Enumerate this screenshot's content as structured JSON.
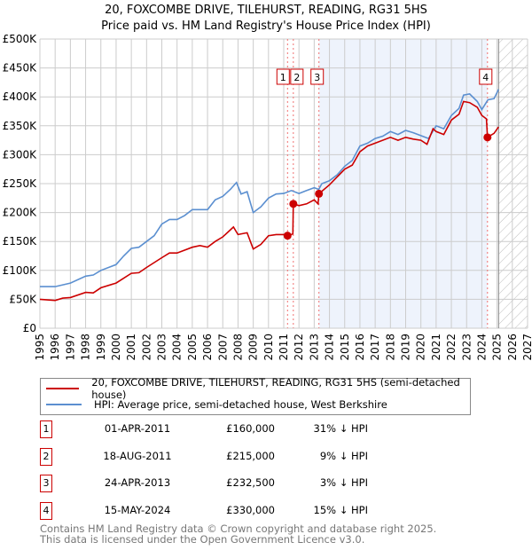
{
  "title_line1": "20, FOXCOMBE DRIVE, TILEHURST, READING, RG31 5HS",
  "title_line2": "Price paid vs. HM Land Registry's House Price Index (HPI)",
  "legend": {
    "property": "20, FOXCOMBE DRIVE, TILEHURST, READING, RG31 5HS (semi-detached house)",
    "hpi": "HPI: Average price, semi-detached house, West Berkshire"
  },
  "sales": [
    {
      "n": "1",
      "date": "01-APR-2011",
      "price": "£160,000",
      "pct": "31% ↓ HPI"
    },
    {
      "n": "2",
      "date": "18-AUG-2011",
      "price": "£215,000",
      "pct": "9% ↓ HPI"
    },
    {
      "n": "3",
      "date": "24-APR-2013",
      "price": "£232,500",
      "pct": "3% ↓ HPI"
    },
    {
      "n": "4",
      "date": "15-MAY-2024",
      "price": "£330,000",
      "pct": "15% ↓ HPI"
    }
  ],
  "footer1": "Contains HM Land Registry data © Crown copyright and database right 2025.",
  "footer2": "This data is licensed under the Open Government Licence v3.0.",
  "colors": {
    "property": "#cc0000",
    "hpi": "#5b8fd0",
    "shade": "#eef3fc"
  },
  "chart_data": {
    "type": "line",
    "xlim": [
      1995,
      2027
    ],
    "ylim": [
      0,
      500000
    ],
    "yticks": [
      0,
      50000,
      100000,
      150000,
      200000,
      250000,
      300000,
      350000,
      400000,
      450000,
      500000
    ],
    "ytick_labels": [
      "£0",
      "£50K",
      "£100K",
      "£150K",
      "£200K",
      "£250K",
      "£300K",
      "£350K",
      "£400K",
      "£450K",
      "£500K"
    ],
    "xtick_labels": [
      "1995",
      "1996",
      "1997",
      "1998",
      "1999",
      "2000",
      "2001",
      "2002",
      "2003",
      "2004",
      "2005",
      "2006",
      "2007",
      "2008",
      "2009",
      "2010",
      "2011",
      "2012",
      "2013",
      "2014",
      "2015",
      "2016",
      "2017",
      "2018",
      "2019",
      "2020",
      "2021",
      "2022",
      "2023",
      "2024",
      "2025",
      "2026",
      "2027"
    ],
    "shaded_range": [
      2013.31,
      2024.37
    ],
    "forecast_range": [
      2025.1,
      2027
    ],
    "sale_points": [
      {
        "label": "1",
        "x": 2011.25,
        "y": 160000
      },
      {
        "label": "2",
        "x": 2011.63,
        "y": 215000
      },
      {
        "label": "3",
        "x": 2013.31,
        "y": 232500
      },
      {
        "label": "4",
        "x": 2024.37,
        "y": 330000
      }
    ],
    "series": [
      {
        "name": "20, FOXCOMBE DRIVE, TILEHURST, READING, RG31 5HS (semi-detached house)",
        "x": [
          1995,
          1996,
          1996.5,
          1997,
          1998,
          1998.5,
          1999,
          2000,
          2001,
          2001.5,
          2002,
          2003,
          2003.5,
          2004,
          2005,
          2005.5,
          2006,
          2006.5,
          2007,
          2007.7,
          2008,
          2008.6,
          2009,
          2009.5,
          2010,
          2010.5,
          2011,
          2011.25,
          2011.6,
          2011.63,
          2012,
          2012.5,
          2013,
          2013.25,
          2013.31,
          2014,
          2015,
          2015.5,
          2016,
          2016.5,
          2017,
          2018,
          2018.5,
          2019,
          2019.5,
          2020,
          2020.4,
          2020.8,
          2021,
          2021.5,
          2022,
          2022.5,
          2022.8,
          2023.2,
          2023.7,
          2024,
          2024.3,
          2024.37,
          2024.8,
          2025.1
        ],
        "y": [
          50000,
          48000,
          52000,
          53000,
          62000,
          61000,
          70000,
          78000,
          95000,
          96000,
          105000,
          122000,
          130000,
          130000,
          140000,
          143000,
          140000,
          150000,
          158000,
          175000,
          162000,
          165000,
          137000,
          145000,
          160000,
          162000,
          162000,
          160000,
          163000,
          215000,
          212000,
          215000,
          222000,
          215000,
          232500,
          248000,
          275000,
          282000,
          305000,
          315000,
          320000,
          330000,
          325000,
          330000,
          327000,
          325000,
          318000,
          345000,
          340000,
          335000,
          360000,
          370000,
          392000,
          390000,
          382000,
          368000,
          362000,
          330000,
          337000,
          348000
        ]
      },
      {
        "name": "HPI: Average price, semi-detached house, West Berkshire",
        "x": [
          1995,
          1996,
          1996.5,
          1997,
          1998,
          1998.5,
          1999,
          2000,
          2000.5,
          2001,
          2001.5,
          2002,
          2002.5,
          2003,
          2003.5,
          2004,
          2004.5,
          2005,
          2005.5,
          2006,
          2006.5,
          2007,
          2007.5,
          2007.9,
          2008.2,
          2008.6,
          2009,
          2009.5,
          2010,
          2010.5,
          2011,
          2011.5,
          2012,
          2012.5,
          2013,
          2013.3,
          2013.5,
          2014,
          2014.5,
          2015,
          2015.5,
          2016,
          2016.5,
          2017,
          2017.5,
          2018,
          2018.5,
          2019,
          2019.5,
          2020,
          2020.5,
          2021,
          2021.5,
          2022,
          2022.5,
          2022.8,
          2023.2,
          2023.7,
          2024,
          2024.4,
          2024.8,
          2025.1
        ],
        "y": [
          72000,
          72000,
          75000,
          78000,
          90000,
          92000,
          100000,
          110000,
          125000,
          138000,
          140000,
          150000,
          160000,
          180000,
          188000,
          188000,
          195000,
          205000,
          205000,
          205000,
          222000,
          228000,
          240000,
          252000,
          232000,
          236000,
          200000,
          210000,
          225000,
          232000,
          233000,
          238000,
          233000,
          238000,
          243000,
          240000,
          250000,
          255000,
          265000,
          280000,
          290000,
          315000,
          320000,
          328000,
          332000,
          340000,
          335000,
          342000,
          338000,
          333000,
          328000,
          350000,
          345000,
          368000,
          380000,
          403000,
          405000,
          392000,
          378000,
          395000,
          397000,
          413000
        ]
      }
    ]
  }
}
